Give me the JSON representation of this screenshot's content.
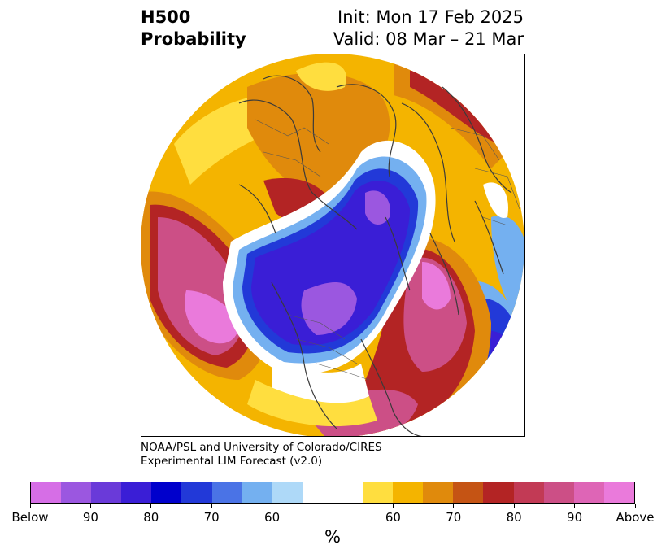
{
  "title": {
    "left_line1": "H500",
    "left_line2": "Probability",
    "right_line1": "Init: Mon 17 Feb 2025",
    "right_line2": "Valid: 08 Mar – 21 Mar"
  },
  "credit": {
    "line1": "NOAA/PSL and University of Colorado/CIRES",
    "line2": "Experimental LIM Forecast (v2.0)"
  },
  "colorbar": {
    "unit": "%",
    "colors": [
      "#d66ee6",
      "#9b57e0",
      "#6a3ad9",
      "#3a1ed6",
      "#0000cc",
      "#2239d8",
      "#4a73e6",
      "#74b0f0",
      "#aed9f8",
      "#ffffff",
      "#ffffff",
      "#ffde3f",
      "#f4b400",
      "#e08a0c",
      "#c55414",
      "#b32424",
      "#c23a55",
      "#cc4f86",
      "#de65b6",
      "#ea7adb"
    ],
    "labels": [
      "Below",
      "90",
      "80",
      "70",
      "60",
      "60",
      "70",
      "80",
      "90",
      "Above"
    ]
  },
  "map": {
    "projection": "north-polar-stereographic",
    "colors": {
      "below_90": "#9b57e0",
      "below_80": "#3a1ed6",
      "below_70": "#2239d8",
      "below_60": "#74b0f0",
      "near_normal": "#ffffff",
      "above_50": "#ffde3f",
      "above_60": "#f4b400",
      "above_70": "#e08a0c",
      "above_80": "#b32424",
      "above_90": "#cc4f86",
      "above_max": "#ea7adb",
      "coastline": "#3a3a3a"
    }
  }
}
